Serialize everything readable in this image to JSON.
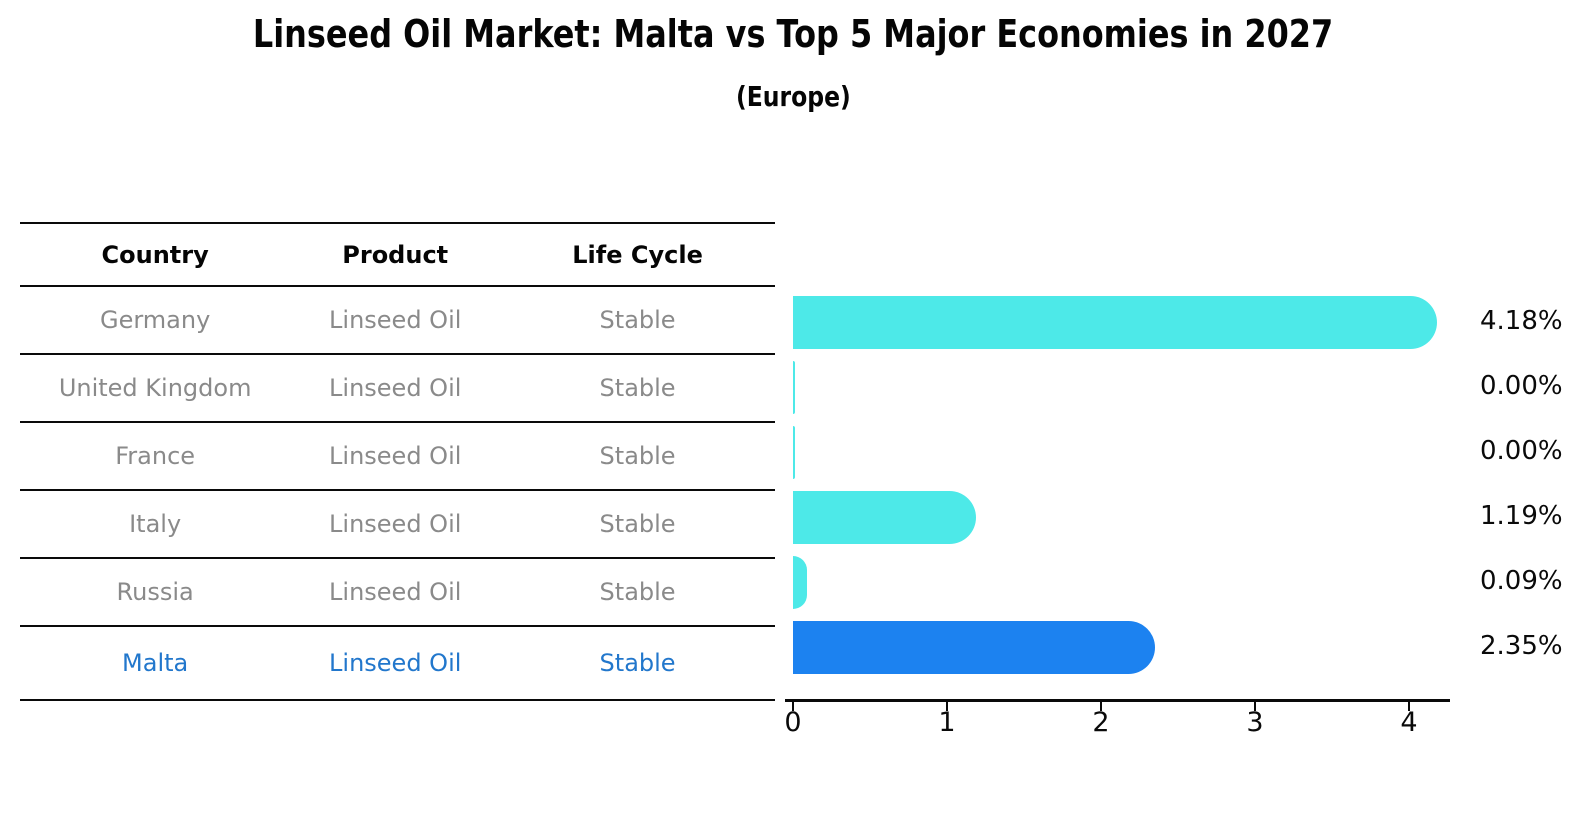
{
  "title": "Linseed Oil Market: Malta vs Top 5 Major Economies in 2027",
  "subtitle": "(Europe)",
  "table": {
    "headers": [
      "Country",
      "Product",
      "Life Cycle"
    ],
    "rows": [
      {
        "country": "Germany",
        "product": "Linseed Oil",
        "life_cycle": "Stable"
      },
      {
        "country": "United Kingdom",
        "product": "Linseed Oil",
        "life_cycle": "Stable"
      },
      {
        "country": "France",
        "product": "Linseed Oil",
        "life_cycle": "Stable"
      },
      {
        "country": "Italy",
        "product": "Linseed Oil",
        "life_cycle": "Stable"
      },
      {
        "country": "Russia",
        "product": "Linseed Oil",
        "life_cycle": "Stable"
      },
      {
        "country": "Malta",
        "product": "Linseed Oil",
        "life_cycle": "Stable"
      }
    ]
  },
  "chart_data": {
    "type": "bar",
    "orientation": "horizontal",
    "title": "Linseed Oil Market: Malta vs Top 5 Major Economies in 2027",
    "subtitle": "(Europe)",
    "categories": [
      "Germany",
      "United Kingdom",
      "France",
      "Italy",
      "Russia",
      "Malta"
    ],
    "values": [
      4.18,
      0.0,
      0.0,
      1.19,
      0.09,
      2.35
    ],
    "value_labels": [
      "4.18%",
      "0.00%",
      "0.00%",
      "1.19%",
      "0.09%",
      "2.35%"
    ],
    "xlabel": "",
    "ylabel": "",
    "xlim": [
      0,
      4.3
    ],
    "xticks": [
      0,
      1,
      2,
      3,
      4
    ],
    "xtick_labels": [
      "0",
      "1",
      "2",
      "3",
      "4"
    ],
    "grid": false,
    "legend": false,
    "bar_color": "#4DE9E8",
    "highlight_color": "#1C82F0",
    "highlight_index": 5,
    "highlight_style": "dotted-edge"
  },
  "colors": {
    "text_gray": "#8a8a8a",
    "text_black": "#050505",
    "highlight_text_blue": "#2277cc",
    "axis": "#0a0a0a",
    "background": "#ffffff"
  }
}
